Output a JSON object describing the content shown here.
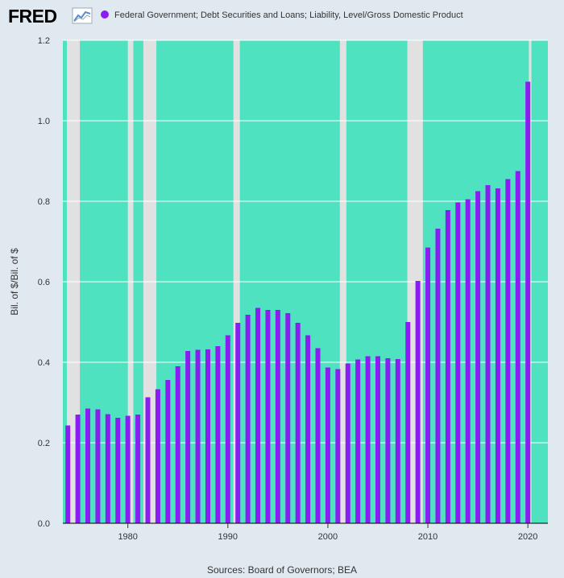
{
  "logo": {
    "text": "FRED"
  },
  "source": "Sources: Board of Governors; BEA",
  "colors": {
    "background": "#e1e9f0",
    "plot_background": "#4ee2c1",
    "recession": "#e1e1e1",
    "bar": "#8b1df3",
    "grid": "#ffffff",
    "axis": "#000000",
    "text": "#333333"
  },
  "chart_data": {
    "type": "bar",
    "title": "",
    "xlabel": "",
    "ylabel": "Bil. of $/Bil. of $",
    "legend": {
      "position": "top-left",
      "entries": [
        "Federal Government; Debt Securities and Loans; Liability, Level/Gross Domestic Product"
      ]
    },
    "grid": true,
    "xlim": [
      1973.5,
      2022
    ],
    "ylim": [
      0,
      1.2
    ],
    "x_ticks": [
      1980,
      1990,
      2000,
      2010,
      2020
    ],
    "y_ticks": [
      0.0,
      0.2,
      0.4,
      0.6,
      0.8,
      1.0,
      1.2
    ],
    "y_tick_labels": [
      "0.0",
      "0.2",
      "0.4",
      "0.6",
      "0.8",
      "1.0",
      "1.2"
    ],
    "recessions": [
      [
        1973.9,
        1975.2
      ],
      [
        1980.0,
        1980.55
      ],
      [
        1981.55,
        1982.85
      ],
      [
        1990.55,
        1991.2
      ],
      [
        2001.2,
        2001.85
      ],
      [
        2007.95,
        2009.5
      ],
      [
        2020.1,
        2020.35
      ]
    ],
    "series": [
      {
        "name": "Federal Government; Debt Securities and Loans; Liability, Level/Gross Domestic Product",
        "x": [
          1974,
          1975,
          1976,
          1977,
          1978,
          1979,
          1980,
          1981,
          1982,
          1983,
          1984,
          1985,
          1986,
          1987,
          1988,
          1989,
          1990,
          1991,
          1992,
          1993,
          1994,
          1995,
          1996,
          1997,
          1998,
          1999,
          2000,
          2001,
          2002,
          2003,
          2004,
          2005,
          2006,
          2007,
          2008,
          2009,
          2010,
          2011,
          2012,
          2013,
          2014,
          2015,
          2016,
          2017,
          2018,
          2019,
          2020
        ],
        "values": [
          0.243,
          0.27,
          0.285,
          0.283,
          0.271,
          0.262,
          0.267,
          0.27,
          0.313,
          0.333,
          0.356,
          0.39,
          0.428,
          0.431,
          0.432,
          0.44,
          0.467,
          0.498,
          0.518,
          0.535,
          0.53,
          0.53,
          0.522,
          0.498,
          0.467,
          0.435,
          0.387,
          0.383,
          0.397,
          0.407,
          0.415,
          0.415,
          0.41,
          0.408,
          0.5,
          0.602,
          0.685,
          0.732,
          0.778,
          0.797,
          0.805,
          0.825,
          0.84,
          0.832,
          0.855,
          0.875,
          1.097
        ]
      }
    ]
  }
}
